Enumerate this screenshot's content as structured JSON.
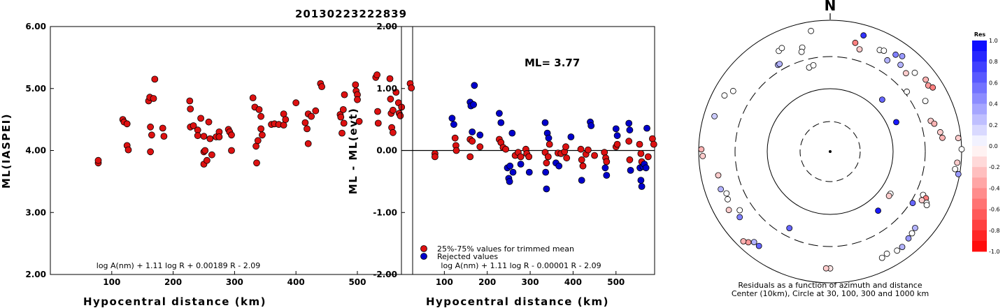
{
  "title": "20130223222839",
  "chart_data": [
    {
      "type": "scatter",
      "xlabel": "Hypocentral distance (km)",
      "ylabel": "ML(IASPEI)",
      "xlim": [
        0,
        590
      ],
      "ylim": [
        2.0,
        6.0
      ],
      "x_ticks": [
        "100",
        "200",
        "300",
        "400",
        "500"
      ],
      "y_ticks": [
        "2.00",
        "3.00",
        "4.00",
        "5.00",
        "6.00"
      ],
      "formula": "log A(nm) + 1.11 log R + 0.00189 R - 2.09",
      "marker_color": "#dd1111",
      "points": [
        [
          78,
          3.8
        ],
        [
          78,
          3.84
        ],
        [
          118,
          4.5
        ],
        [
          120,
          4.46
        ],
        [
          125,
          4.43
        ],
        [
          125,
          4.08
        ],
        [
          127,
          4.01
        ],
        [
          160,
          4.8
        ],
        [
          162,
          4.86
        ],
        [
          163,
          4.38
        ],
        [
          163,
          3.98
        ],
        [
          165,
          4.25
        ],
        [
          168,
          4.84
        ],
        [
          170,
          5.15
        ],
        [
          183,
          4.36
        ],
        [
          185,
          4.23
        ],
        [
          227,
          4.8
        ],
        [
          228,
          4.67
        ],
        [
          228,
          4.38
        ],
        [
          233,
          4.4
        ],
        [
          240,
          4.33
        ],
        [
          240,
          4.24
        ],
        [
          245,
          4.52
        ],
        [
          250,
          4.23
        ],
        [
          250,
          3.98
        ],
        [
          250,
          3.78
        ],
        [
          252,
          4.0
        ],
        [
          255,
          3.84
        ],
        [
          258,
          4.46
        ],
        [
          260,
          4.19
        ],
        [
          263,
          3.93
        ],
        [
          270,
          4.22
        ],
        [
          275,
          4.3
        ],
        [
          275,
          4.22
        ],
        [
          290,
          4.34
        ],
        [
          292,
          4.3
        ],
        [
          295,
          4.25
        ],
        [
          295,
          4.0
        ],
        [
          330,
          4.85
        ],
        [
          333,
          4.7
        ],
        [
          335,
          4.07
        ],
        [
          336,
          3.8
        ],
        [
          338,
          4.16
        ],
        [
          340,
          4.66
        ],
        [
          343,
          4.55
        ],
        [
          343,
          4.35
        ],
        [
          345,
          4.25
        ],
        [
          360,
          4.42
        ],
        [
          365,
          4.43
        ],
        [
          372,
          4.42
        ],
        [
          380,
          4.59
        ],
        [
          380,
          4.41
        ],
        [
          383,
          4.5
        ],
        [
          400,
          4.77
        ],
        [
          415,
          4.45
        ],
        [
          418,
          4.35
        ],
        [
          420,
          4.11
        ],
        [
          420,
          4.59
        ],
        [
          425,
          4.55
        ],
        [
          432,
          4.64
        ],
        [
          440,
          5.08
        ],
        [
          442,
          5.03
        ],
        [
          472,
          4.58
        ],
        [
          473,
          4.54
        ],
        [
          475,
          4.28
        ],
        [
          477,
          4.66
        ],
        [
          478,
          4.44
        ],
        [
          479,
          4.9
        ],
        [
          497,
          5.06
        ],
        [
          498,
          4.96
        ],
        [
          500,
          4.9
        ],
        [
          500,
          4.82
        ],
        [
          503,
          4.47
        ],
        [
          530,
          5.18
        ],
        [
          532,
          5.22
        ],
        [
          533,
          4.63
        ],
        [
          534,
          4.44
        ],
        [
          553,
          5.16
        ],
        [
          554,
          4.83
        ],
        [
          555,
          4.6
        ],
        [
          556,
          4.37
        ],
        [
          558,
          4.29
        ],
        [
          558,
          4.65
        ],
        [
          563,
          4.94
        ],
        [
          567,
          4.77
        ],
        [
          568,
          4.6
        ],
        [
          570,
          4.56
        ],
        [
          572,
          4.7
        ],
        [
          586,
          5.08
        ],
        [
          588,
          5.01
        ]
      ]
    },
    {
      "type": "scatter",
      "xlabel": "Hypocentral distance (km)",
      "ylabel": "ML - ML(evt)",
      "xlim": [
        0,
        590
      ],
      "ylim": [
        -2.0,
        2.0
      ],
      "x_ticks": [
        "100",
        "200",
        "300",
        "400",
        "500"
      ],
      "y_ticks": [
        "-2.00",
        "-1.00",
        "0.00",
        "1.00",
        "2.00"
      ],
      "annotation": "ML= 3.77",
      "formula": "log A(nm) + 1.11 log R - 0.00001 R - 2.09",
      "legend_position": "bottom-left",
      "series": [
        {
          "name": "25%-75% values for trimmed mean",
          "color": "#dd1111",
          "points": [
            [
              78,
              -0.05
            ],
            [
              78,
              -0.1
            ],
            [
              125,
              0.2
            ],
            [
              127,
              0.08
            ],
            [
              128,
              0.0
            ],
            [
              160,
              0.18
            ],
            [
              160,
              -0.1
            ],
            [
              165,
              0.15
            ],
            [
              183,
              0.06
            ],
            [
              228,
              0.18
            ],
            [
              232,
              0.13
            ],
            [
              237,
              0.05
            ],
            [
              243,
              0.02
            ],
            [
              265,
              -0.08
            ],
            [
              272,
              -0.03
            ],
            [
              278,
              -0.1
            ],
            [
              290,
              0.02
            ],
            [
              292,
              -0.05
            ],
            [
              297,
              -0.1
            ],
            [
              335,
              -0.03
            ],
            [
              338,
              -0.2
            ],
            [
              342,
              -0.1
            ],
            [
              345,
              0.1
            ],
            [
              365,
              -0.04
            ],
            [
              372,
              -0.05
            ],
            [
              380,
              -0.02
            ],
            [
              383,
              0.06
            ],
            [
              385,
              -0.12
            ],
            [
              418,
              0.02
            ],
            [
              420,
              -0.15
            ],
            [
              423,
              -0.25
            ],
            [
              430,
              -0.06
            ],
            [
              435,
              0.01
            ],
            [
              450,
              -0.08
            ],
            [
              473,
              -0.03
            ],
            [
              476,
              -0.12
            ],
            [
              478,
              -0.18
            ],
            [
              500,
              0.06
            ],
            [
              503,
              0.1
            ],
            [
              530,
              0.15
            ],
            [
              532,
              -0.15
            ],
            [
              555,
              0.1
            ],
            [
              558,
              -0.05
            ],
            [
              560,
              -0.18
            ],
            [
              575,
              -0.1
            ],
            [
              585,
              0.19
            ],
            [
              588,
              0.1
            ]
          ]
        },
        {
          "name": "Rejected values",
          "color": "#0000cc",
          "points": [
            [
              118,
              0.52
            ],
            [
              122,
              0.42
            ],
            [
              160,
              0.78
            ],
            [
              162,
              0.72
            ],
            [
              165,
              0.3
            ],
            [
              168,
              0.74
            ],
            [
              170,
              1.05
            ],
            [
              183,
              0.25
            ],
            [
              228,
              0.6
            ],
            [
              232,
              0.45
            ],
            [
              247,
              -0.28
            ],
            [
              250,
              -0.45
            ],
            [
              252,
              -0.5
            ],
            [
              253,
              -0.25
            ],
            [
              258,
              0.28
            ],
            [
              260,
              -0.35
            ],
            [
              278,
              -0.22
            ],
            [
              298,
              -0.35
            ],
            [
              335,
              0.45
            ],
            [
              336,
              -0.35
            ],
            [
              338,
              -0.62
            ],
            [
              340,
              0.28
            ],
            [
              343,
              0.2
            ],
            [
              360,
              -0.2
            ],
            [
              367,
              -0.25
            ],
            [
              395,
              0.22
            ],
            [
              420,
              -0.48
            ],
            [
              440,
              0.46
            ],
            [
              442,
              0.4
            ],
            [
              475,
              -0.28
            ],
            [
              478,
              -0.4
            ],
            [
              500,
              0.35
            ],
            [
              503,
              0.24
            ],
            [
              530,
              0.44
            ],
            [
              532,
              0.33
            ],
            [
              534,
              -0.32
            ],
            [
              556,
              -0.28
            ],
            [
              558,
              -0.48
            ],
            [
              560,
              -0.58
            ],
            [
              563,
              -0.26
            ],
            [
              566,
              -0.22
            ],
            [
              570,
              -0.28
            ],
            [
              572,
              0.36
            ]
          ]
        }
      ]
    },
    {
      "type": "scatter",
      "subtype": "polar-azimuth-distance",
      "north_label": "N",
      "caption_lines": [
        "Residuals as a function of azimuth and distance",
        "Center (10km), Circle at 30, 100, 300 and 1000 km"
      ],
      "rings_km": [
        30,
        100,
        300,
        1000
      ],
      "colorbar": {
        "title": "Res",
        "ticks": [
          "1.0",
          "0.8",
          "0.6",
          "0.4",
          "0.2",
          "0.0",
          "-0.2",
          "-0.4",
          "-0.6",
          "-0.8",
          "-1.0"
        ],
        "max_color": "#0000ff",
        "min_color": "#ff0000"
      },
      "points": [
        {
          "az": 351,
          "r": 0.93,
          "res": 0.0
        },
        {
          "az": 16,
          "r": 0.92,
          "res": 0.8
        },
        {
          "az": 13,
          "r": 0.85,
          "res": -0.5
        },
        {
          "az": 16,
          "r": 0.81,
          "res": -0.2
        },
        {
          "az": 345,
          "r": 0.82,
          "res": 0.0
        },
        {
          "az": 344,
          "r": 0.79,
          "res": 0.0
        },
        {
          "az": 346,
          "r": 0.66,
          "res": 0.0
        },
        {
          "az": 349,
          "r": 0.67,
          "res": 0.0
        },
        {
          "az": 26,
          "r": 0.86,
          "res": 0.0
        },
        {
          "az": 28,
          "r": 0.87,
          "res": 0.0
        },
        {
          "az": 32,
          "r": 0.82,
          "res": 0.3
        },
        {
          "az": 34,
          "r": 0.89,
          "res": 0.5
        },
        {
          "az": 37,
          "r": 0.91,
          "res": 0.4
        },
        {
          "az": 39,
          "r": 0.85,
          "res": 0.3
        },
        {
          "az": 44,
          "r": 0.83,
          "res": -0.2
        },
        {
          "az": 47,
          "r": 0.88,
          "res": 0.0
        },
        {
          "az": 52,
          "r": 0.74,
          "res": 0.0
        },
        {
          "az": 53,
          "r": 0.91,
          "res": -0.3
        },
        {
          "az": 56,
          "r": 0.9,
          "res": -0.4
        },
        {
          "az": 58,
          "r": 0.92,
          "res": -0.5
        },
        {
          "az": 45,
          "r": 0.56,
          "res": 0.6
        },
        {
          "az": 62,
          "r": 0.82,
          "res": 0.0
        },
        {
          "az": 66,
          "r": 0.55,
          "res": 0.9
        },
        {
          "az": 73,
          "r": 0.8,
          "res": -0.2
        },
        {
          "az": 75,
          "r": 0.82,
          "res": -0.3
        },
        {
          "az": 80,
          "r": 0.85,
          "res": -0.2
        },
        {
          "az": 83,
          "r": 0.86,
          "res": -0.3
        },
        {
          "az": 84,
          "r": 0.98,
          "res": -0.2
        },
        {
          "az": 89,
          "r": 1.0,
          "res": 0.0
        },
        {
          "az": 95,
          "r": 0.97,
          "res": -0.2
        },
        {
          "az": 98,
          "r": 0.96,
          "res": 0.0
        },
        {
          "az": 100,
          "r": 0.99,
          "res": 0.4
        },
        {
          "az": 115,
          "r": 0.78,
          "res": 0.0
        },
        {
          "az": 116,
          "r": 0.81,
          "res": -0.5
        },
        {
          "az": 118,
          "r": 0.83,
          "res": 0.0
        },
        {
          "az": 119,
          "r": 0.84,
          "res": 0.0
        },
        {
          "az": 118,
          "r": 0.79,
          "res": -0.2
        },
        {
          "az": 122,
          "r": 0.74,
          "res": 0.6
        },
        {
          "az": 132,
          "r": 0.87,
          "res": 0.3
        },
        {
          "az": 135,
          "r": 0.88,
          "res": 0.0
        },
        {
          "az": 138,
          "r": 0.89,
          "res": 0.4
        },
        {
          "az": 143,
          "r": 0.91,
          "res": 0.3
        },
        {
          "az": 146,
          "r": 0.91,
          "res": 0.0
        },
        {
          "az": 151,
          "r": 0.89,
          "res": 0.0
        },
        {
          "az": 154,
          "r": 0.9,
          "res": 0.0
        },
        {
          "az": 125,
          "r": 0.56,
          "res": 0.0
        },
        {
          "az": 127,
          "r": 0.56,
          "res": -0.2
        },
        {
          "az": 141,
          "r": 0.58,
          "res": 0.9
        },
        {
          "az": 180,
          "r": 0.89,
          "res": -0.1
        },
        {
          "az": 182,
          "r": 0.89,
          "res": -0.2
        },
        {
          "az": 208,
          "r": 0.66,
          "res": 0.6
        },
        {
          "az": 217,
          "r": 0.9,
          "res": 0.6
        },
        {
          "az": 220,
          "r": 0.9,
          "res": 0.3
        },
        {
          "az": 222,
          "r": 0.93,
          "res": -0.4
        },
        {
          "az": 224,
          "r": 0.95,
          "res": -0.3
        },
        {
          "az": 234,
          "r": 0.85,
          "res": 0.5
        },
        {
          "az": 237,
          "r": 0.82,
          "res": 0.0
        },
        {
          "az": 240,
          "r": 0.89,
          "res": -0.2
        },
        {
          "az": 245,
          "r": 0.86,
          "res": 0.0
        },
        {
          "az": 248,
          "r": 0.85,
          "res": 0.0
        },
        {
          "az": 251,
          "r": 0.88,
          "res": 0.3
        },
        {
          "az": 258,
          "r": 0.87,
          "res": -0.2
        },
        {
          "az": 268,
          "r": 0.97,
          "res": -0.2
        },
        {
          "az": 271,
          "r": 0.98,
          "res": -0.3
        },
        {
          "az": 287,
          "r": 0.92,
          "res": 0.2
        },
        {
          "az": 298,
          "r": 0.91,
          "res": 0.0
        },
        {
          "az": 302,
          "r": 0.87,
          "res": 0.0
        },
        {
          "az": 329,
          "r": 0.77,
          "res": 0.3
        },
        {
          "az": 330,
          "r": 0.77,
          "res": 0.3
        },
        {
          "az": 333,
          "r": 0.86,
          "res": 0.0
        },
        {
          "az": 335,
          "r": 0.87,
          "res": 0.0
        }
      ]
    }
  ]
}
